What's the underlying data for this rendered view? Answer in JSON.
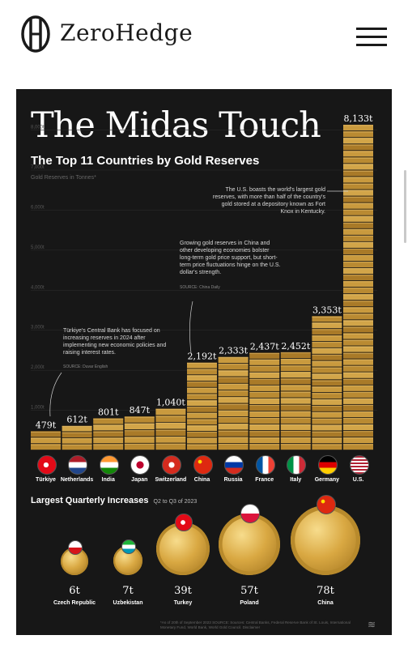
{
  "site": {
    "brand": "ZeroHedge",
    "menu_icon": "hamburger-menu-icon"
  },
  "infographic": {
    "title": "The Midas Touch",
    "subtitle": "The Top 11 Countries by Gold Reserves",
    "axis_label": "Gold Reserves in Tonnes*",
    "annotations": {
      "turkiye": "Türkiye's Central Bank has focused on increasing reserves in 2024 after implementing new economic policies and raising interest rates.",
      "turkiye_source": "SOURCE: Duvar English",
      "china": "Growing gold reserves in China and other developing economies bolster long-term gold price support, but short-term price fluctuations hinge on the U.S. dollar's strength.",
      "china_source": "SOURCE: China Daily",
      "us": "The U.S. boasts the world's largest gold reserves, with more than half of the country's gold stored at a depository known as Fort Knox in Kentucky."
    },
    "quarterly_title": "Largest Quarterly Increases",
    "quarterly_subtitle": "Q2 to Q3 of 2023",
    "footer_note": "*As of 20th of September 2023 SOURCE: Sources: Central Banks, Federal Reserve Bank of St. Louis, International Monetary Fund, World Bank, World Gold Council. Disclaimer",
    "colors": {
      "background": "#171717",
      "gold": "#c9973a",
      "text": "#ffffff"
    }
  },
  "chart_data": [
    {
      "type": "bar",
      "title": "The Top 11 Countries by Gold Reserves",
      "ylabel": "Gold Reserves in Tonnes*",
      "ylim": [
        0,
        8133
      ],
      "yticks": [
        "1,000t",
        "2,000t",
        "3,000t",
        "4,000t",
        "5,000t",
        "6,000t",
        "7,000t",
        "8,000t"
      ],
      "categories": [
        "Türkiye",
        "Netherlands",
        "India",
        "Japan",
        "Switzerland",
        "China",
        "Russia",
        "France",
        "Italy",
        "Germany",
        "U.S."
      ],
      "values": [
        479,
        612,
        801,
        847,
        1040,
        2192,
        2333,
        2437,
        2452,
        3353,
        8133
      ],
      "value_labels": [
        "479t",
        "612t",
        "801t",
        "847t",
        "1,040t",
        "2,192t",
        "2,333t",
        "2,437t",
        "2,452t",
        "3,353t",
        "8,133t"
      ]
    },
    {
      "type": "bar",
      "title": "Largest Quarterly Increases",
      "subtitle": "Q2 to Q3 of 2023",
      "categories": [
        "Czech Republic",
        "Uzbekistan",
        "Turkey",
        "Poland",
        "China"
      ],
      "values": [
        6,
        7,
        39,
        57,
        78
      ],
      "value_labels": [
        "6t",
        "7t",
        "39t",
        "57t",
        "78t"
      ]
    }
  ]
}
